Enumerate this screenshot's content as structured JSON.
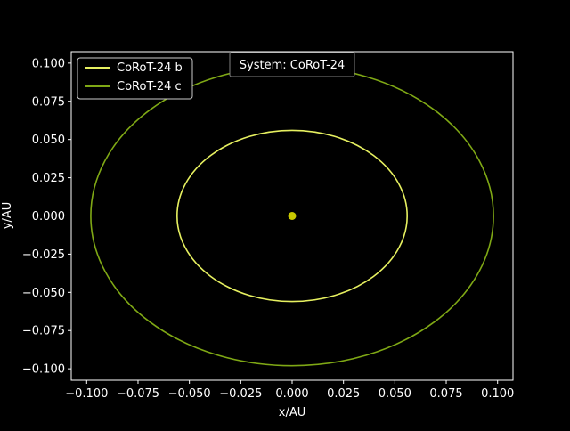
{
  "chart_data": {
    "type": "line",
    "title": "",
    "annotation": "System: CoRoT-24",
    "xlabel": "x/AU",
    "ylabel": "y/AU",
    "xlim": [
      -0.1075,
      0.1075
    ],
    "ylim": [
      -0.1075,
      0.1075
    ],
    "x_ticks": [
      -0.1,
      -0.075,
      -0.05,
      -0.025,
      0.0,
      0.025,
      0.05,
      0.075,
      0.1
    ],
    "x_tick_labels": [
      "−0.100",
      "−0.075",
      "−0.050",
      "−0.025",
      "0.000",
      "0.025",
      "0.050",
      "0.075",
      "0.100"
    ],
    "y_ticks": [
      0.1,
      0.075,
      0.05,
      0.025,
      0.0,
      -0.025,
      -0.05,
      -0.075,
      -0.1
    ],
    "y_tick_labels": [
      "0.100",
      "0.075",
      "0.050",
      "0.025",
      "0.000",
      "−0.025",
      "−0.050",
      "−0.075",
      "−0.100"
    ],
    "grid": false,
    "legend_position": "top-left",
    "star": {
      "x": 0.0,
      "y": 0.0,
      "color": "#c8c800"
    },
    "series": [
      {
        "name": "CoRoT-24 b",
        "semi_major_axis": 0.056,
        "color": "#e6f060"
      },
      {
        "name": "CoRoT-24 c",
        "semi_major_axis": 0.098,
        "color": "#7fa815"
      }
    ]
  }
}
